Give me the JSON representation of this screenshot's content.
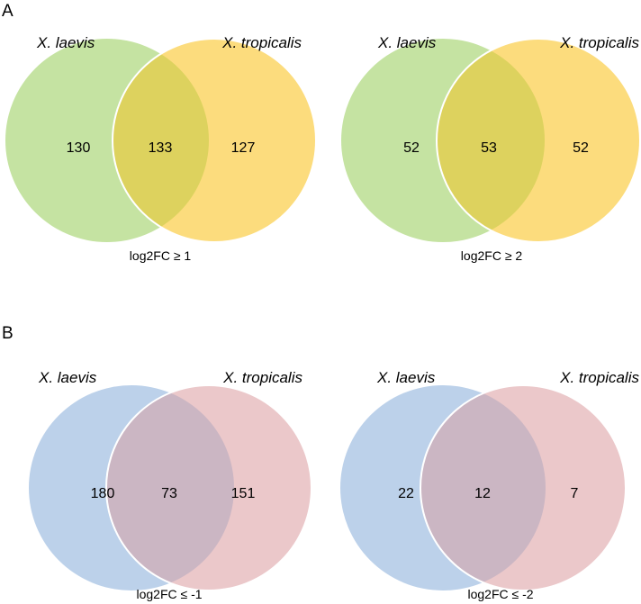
{
  "panels": [
    {
      "letter": "A",
      "diagrams": [
        {
          "left_label": "X. laevis",
          "right_label": "X. tropicalis",
          "left_only": "130",
          "overlap": "133",
          "right_only": "127",
          "threshold": "log2FC ≥ 1",
          "left_color": "#c5e3a2",
          "right_color": "#fcdc7d",
          "overlap_color": "#ddd25e"
        },
        {
          "left_label": "X. laevis",
          "right_label": "X. tropicalis",
          "left_only": "52",
          "overlap": "53",
          "right_only": "52",
          "threshold": "log2FC ≥ 2",
          "left_color": "#c5e3a2",
          "right_color": "#fcdc7d",
          "overlap_color": "#ddd25e"
        }
      ]
    },
    {
      "letter": "B",
      "diagrams": [
        {
          "left_label": "X. laevis",
          "right_label": "X. tropicalis",
          "left_only": "180",
          "overlap": "73",
          "right_only": "151",
          "threshold": "log2FC ≤ -1",
          "left_color": "#bcd1ea",
          "right_color": "#ebc8ca",
          "overlap_color": "#cbb6c3"
        },
        {
          "left_label": "X. laevis",
          "right_label": "X. tropicalis",
          "left_only": "22",
          "overlap": "12",
          "right_only": "7",
          "threshold": "log2FC ≤ -2",
          "left_color": "#bcd1ea",
          "right_color": "#ebc8ca",
          "overlap_color": "#cbb6c3"
        }
      ]
    }
  ]
}
